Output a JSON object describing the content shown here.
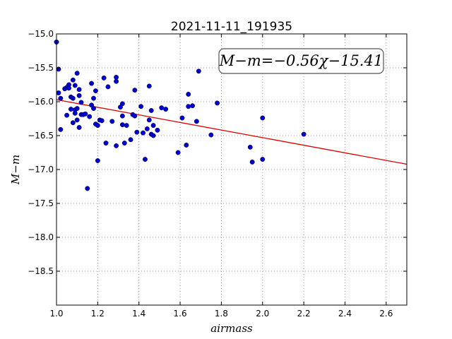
{
  "chart_data": {
    "type": "scatter",
    "title": "2021-11-11_191935",
    "xlabel": "airmass",
    "ylabel": "M−m",
    "xlim": [
      1.0,
      2.7
    ],
    "ylim": [
      -19.0,
      -15.0
    ],
    "y_inverted": true,
    "grid": true,
    "x_ticks": [
      1.0,
      1.2,
      1.4,
      1.6,
      1.8,
      2.0,
      2.2,
      2.4,
      2.6
    ],
    "x_tick_labels": [
      "1.0",
      "1.2",
      "1.4",
      "1.6",
      "1.8",
      "2.0",
      "2.2",
      "2.4",
      "2.6"
    ],
    "y_ticks": [
      -15.0,
      -15.5,
      -16.0,
      -16.5,
      -17.0,
      -17.5,
      -18.0,
      -18.5
    ],
    "y_tick_labels": [
      "−15.0",
      "−15.5",
      "−16.0",
      "−16.5",
      "−17.0",
      "−17.5",
      "−18.0",
      "−18.5"
    ],
    "annotation": "M−m=−0.56χ−15.41",
    "colors": {
      "points": "#0000cc",
      "fit_line": "#dd0000",
      "grid": "#888888"
    },
    "fit": {
      "slope": -0.56,
      "intercept": -15.41
    },
    "points": [
      [
        1.0,
        -15.12
      ],
      [
        1.01,
        -15.52
      ],
      [
        1.01,
        -15.87
      ],
      [
        1.02,
        -15.95
      ],
      [
        1.02,
        -16.41
      ],
      [
        1.04,
        -15.81
      ],
      [
        1.05,
        -16.2
      ],
      [
        1.05,
        -15.79
      ],
      [
        1.06,
        -15.75
      ],
      [
        1.06,
        -15.8
      ],
      [
        1.07,
        -15.93
      ],
      [
        1.07,
        -16.11
      ],
      [
        1.08,
        -15.95
      ],
      [
        1.08,
        -16.31
      ],
      [
        1.08,
        -15.68
      ],
      [
        1.09,
        -15.76
      ],
      [
        1.09,
        -16.12
      ],
      [
        1.09,
        -16.17
      ],
      [
        1.1,
        -15.58
      ],
      [
        1.1,
        -16.1
      ],
      [
        1.1,
        -16.27
      ],
      [
        1.11,
        -16.38
      ],
      [
        1.11,
        -15.82
      ],
      [
        1.11,
        -15.91
      ],
      [
        1.12,
        -16.01
      ],
      [
        1.12,
        -16.19
      ],
      [
        1.13,
        -16.19
      ],
      [
        1.14,
        -16.18
      ],
      [
        1.15,
        -17.28
      ],
      [
        1.16,
        -16.22
      ],
      [
        1.17,
        -16.05
      ],
      [
        1.17,
        -15.73
      ],
      [
        1.18,
        -16.1
      ],
      [
        1.18,
        -15.95
      ],
      [
        1.19,
        -16.33
      ],
      [
        1.19,
        -15.84
      ],
      [
        1.2,
        -16.87
      ],
      [
        1.2,
        -16.35
      ],
      [
        1.21,
        -16.27
      ],
      [
        1.22,
        -16.28
      ],
      [
        1.23,
        -15.65
      ],
      [
        1.24,
        -16.61
      ],
      [
        1.25,
        -15.78
      ],
      [
        1.27,
        -16.29
      ],
      [
        1.29,
        -15.64
      ],
      [
        1.29,
        -15.7
      ],
      [
        1.29,
        -16.65
      ],
      [
        1.31,
        -16.08
      ],
      [
        1.32,
        -16.03
      ],
      [
        1.32,
        -16.21
      ],
      [
        1.32,
        -16.34
      ],
      [
        1.33,
        -16.61
      ],
      [
        1.34,
        -16.35
      ],
      [
        1.36,
        -16.56
      ],
      [
        1.37,
        -16.19
      ],
      [
        1.38,
        -15.83
      ],
      [
        1.38,
        -16.21
      ],
      [
        1.39,
        -16.45
      ],
      [
        1.41,
        -16.07
      ],
      [
        1.42,
        -16.46
      ],
      [
        1.43,
        -16.85
      ],
      [
        1.44,
        -16.4
      ],
      [
        1.45,
        -15.77
      ],
      [
        1.45,
        -16.27
      ],
      [
        1.46,
        -16.13
      ],
      [
        1.46,
        -16.48
      ],
      [
        1.47,
        -16.5
      ],
      [
        1.47,
        -16.35
      ],
      [
        1.49,
        -16.42
      ],
      [
        1.51,
        -16.09
      ],
      [
        1.53,
        -16.11
      ],
      [
        1.59,
        -16.75
      ],
      [
        1.61,
        -16.24
      ],
      [
        1.63,
        -16.64
      ],
      [
        1.64,
        -15.89
      ],
      [
        1.64,
        -16.07
      ],
      [
        1.66,
        -16.06
      ],
      [
        1.68,
        -16.29
      ],
      [
        1.69,
        -15.55
      ],
      [
        1.75,
        -16.49
      ],
      [
        1.78,
        -16.02
      ],
      [
        1.94,
        -16.67
      ],
      [
        1.95,
        -16.89
      ],
      [
        2.0,
        -16.24
      ],
      [
        2.0,
        -16.85
      ],
      [
        2.2,
        -16.48
      ]
    ]
  }
}
